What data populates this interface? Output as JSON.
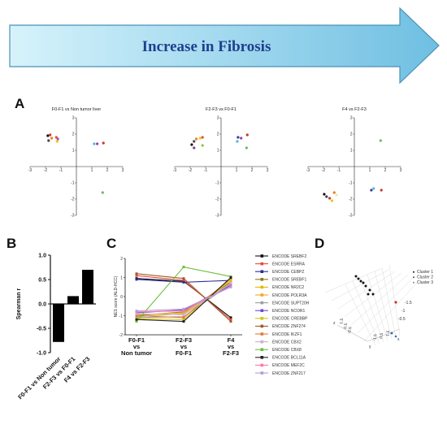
{
  "banner": {
    "text": "Increase  in  Fibrosis"
  },
  "panels": {
    "a": "A",
    "b": "B",
    "c": "C",
    "d": "D"
  },
  "colors": {
    "arrow_fill_light": "#d6f3fb",
    "arrow_fill_dark": "#7cc6e6",
    "arrow_text": "#1f3f8f"
  },
  "chart_data": [
    {
      "id": "A1",
      "type": "scatter",
      "title": "F0-F1 vs Non tumor liver",
      "xlim": [
        -3,
        3
      ],
      "ylim": [
        -3,
        3
      ],
      "xticks": [
        "-3",
        "-2",
        "-1",
        "1",
        "2",
        "3"
      ],
      "yticks": [
        "-3",
        "-2",
        "-1",
        "1",
        "2",
        "3"
      ],
      "points": [
        {
          "x": -1.85,
          "y": 1.9,
          "color": "#111111"
        },
        {
          "x": -1.7,
          "y": 1.95,
          "color": "#c0392b"
        },
        {
          "x": -1.8,
          "y": 1.6,
          "color": "#444444"
        },
        {
          "x": -1.6,
          "y": 1.75,
          "color": "#e67e22"
        },
        {
          "x": -1.3,
          "y": 1.8,
          "color": "#e74c3c"
        },
        {
          "x": -1.25,
          "y": 1.55,
          "color": "#f1c40f"
        },
        {
          "x": -1.2,
          "y": 1.7,
          "color": "#9b59b6"
        },
        {
          "x": 1.15,
          "y": 1.4,
          "color": "#5dade2"
        },
        {
          "x": 1.35,
          "y": 1.4,
          "color": "#8e44ad"
        },
        {
          "x": 1.75,
          "y": 1.45,
          "color": "#c0392b"
        },
        {
          "x": 1.7,
          "y": -1.6,
          "color": "#5dc15d"
        }
      ]
    },
    {
      "id": "A2",
      "type": "scatter",
      "title": "F2-F3 vs F0-F1",
      "xlim": [
        -3,
        3
      ],
      "ylim": [
        -3,
        3
      ],
      "xticks": [
        "-3",
        "-2",
        "-1",
        "1",
        "2",
        "3"
      ],
      "yticks": [
        "-3",
        "-2",
        "-1",
        "1",
        "2",
        "3"
      ],
      "points": [
        {
          "x": -1.9,
          "y": 1.35,
          "color": "#111111"
        },
        {
          "x": -1.75,
          "y": 1.55,
          "color": "#444444"
        },
        {
          "x": -1.6,
          "y": 1.7,
          "color": "#e67e22"
        },
        {
          "x": -1.35,
          "y": 1.75,
          "color": "#f1c40f"
        },
        {
          "x": -1.2,
          "y": 1.8,
          "color": "#e74c3c"
        },
        {
          "x": -1.2,
          "y": 1.3,
          "color": "#8bc34a"
        },
        {
          "x": -1.75,
          "y": 1.15,
          "color": "#7d3c98"
        },
        {
          "x": 1.1,
          "y": 1.8,
          "color": "#3b3b98"
        },
        {
          "x": 1.3,
          "y": 1.75,
          "color": "#8e44ad"
        },
        {
          "x": 1.05,
          "y": 1.55,
          "color": "#5dade2"
        },
        {
          "x": 1.7,
          "y": 1.95,
          "color": "#c0392b"
        },
        {
          "x": 1.65,
          "y": 1.15,
          "color": "#5dc15d"
        }
      ]
    },
    {
      "id": "A3",
      "type": "scatter",
      "title": "F4 vs F2-F3",
      "xlim": [
        -3,
        3
      ],
      "ylim": [
        -3,
        3
      ],
      "xticks": [
        "-3",
        "-2",
        "-1",
        "1",
        "2",
        "3"
      ],
      "yticks": [
        "-3",
        "-2",
        "-1",
        "1",
        "2",
        "3"
      ],
      "points": [
        {
          "x": -1.95,
          "y": -1.7,
          "color": "#111111"
        },
        {
          "x": -1.8,
          "y": -1.85,
          "color": "#444444"
        },
        {
          "x": -1.6,
          "y": -1.95,
          "color": "#c0392b"
        },
        {
          "x": -1.45,
          "y": -2.1,
          "color": "#f1c40f"
        },
        {
          "x": -1.3,
          "y": -1.6,
          "color": "#e67e22"
        },
        {
          "x": -1.15,
          "y": -1.75,
          "color": "#f9e79f"
        },
        {
          "x": 1.1,
          "y": -1.45,
          "color": "#3b3b98"
        },
        {
          "x": 1.25,
          "y": -1.35,
          "color": "#5dade2"
        },
        {
          "x": 1.75,
          "y": -1.45,
          "color": "#c0392b"
        },
        {
          "x": 1.7,
          "y": 1.6,
          "color": "#5dc15d"
        }
      ]
    },
    {
      "id": "B",
      "type": "bar",
      "ylabel": "Spearman r",
      "ylim": [
        -1.0,
        1.0
      ],
      "yticks": [
        "1.0",
        "0.5",
        "0.0",
        "-0.5",
        "-1.0"
      ],
      "categories": [
        "F0-F1 vs Non tumor",
        "F2-F3 vs F0-F1",
        "F4 vs F2-F3"
      ],
      "values": [
        -0.78,
        0.16,
        0.7
      ]
    },
    {
      "id": "C",
      "type": "line",
      "ylabel": "NES score (ALD-HCC)",
      "ylim": [
        -2,
        2
      ],
      "yticks": [
        "2",
        "1",
        "0",
        "-1",
        "-2"
      ],
      "categories": [
        [
          "F0-F1",
          "vs",
          "Non tumor"
        ],
        [
          "F2-F3",
          "vs",
          "F0-F1"
        ],
        [
          "F4",
          "vs",
          "F2-F3"
        ]
      ],
      "series": [
        {
          "name": "ENCODE SREBF2",
          "color": "#111111",
          "values": [
            0.95,
            0.8,
            -1.1
          ]
        },
        {
          "name": "ENCODE ESRRA",
          "color": "#e74c3c",
          "values": [
            1.1,
            0.85,
            -1.2
          ]
        },
        {
          "name": "ENCODE CEBPZ",
          "color": "#2a2a9a",
          "values": [
            0.9,
            0.75,
            0.85
          ]
        },
        {
          "name": "ENCODE SREBF1",
          "color": "#8a7a20",
          "values": [
            -1.0,
            -0.8,
            0.75
          ]
        },
        {
          "name": "ENCODE NR2C2",
          "color": "#e6b800",
          "values": [
            -1.05,
            -0.9,
            0.7
          ]
        },
        {
          "name": "ENCODE POLR3A",
          "color": "#f5a623",
          "values": [
            -0.95,
            -0.85,
            0.8
          ]
        },
        {
          "name": "ENCODE SUPT20H",
          "color": "#9e9e9e",
          "values": [
            -1.1,
            -1.05,
            0.65
          ]
        },
        {
          "name": "ENCODE NCOR1",
          "color": "#6a4cd6",
          "values": [
            -0.85,
            -0.7,
            0.6
          ]
        },
        {
          "name": "ENCODE CREBBP",
          "color": "#d4c414",
          "values": [
            -1.15,
            -1.2,
            0.9
          ]
        },
        {
          "name": "ENCODE ZNF274",
          "color": "#a05a2c",
          "values": [
            1.2,
            0.95,
            -1.3
          ]
        },
        {
          "name": "ENCODE IKZF1",
          "color": "#e07b39",
          "values": [
            -1.0,
            -1.1,
            0.95
          ]
        },
        {
          "name": "ENCODE CBX2",
          "color": "#c9b0d6",
          "values": [
            -0.9,
            -0.95,
            0.7
          ]
        },
        {
          "name": "ENCODE CBX8",
          "color": "#6abf3a",
          "values": [
            -1.3,
            1.55,
            1.05
          ]
        },
        {
          "name": "ENCODE BCL11A",
          "color": "#222222",
          "values": [
            -1.2,
            -1.3,
            1.0
          ]
        },
        {
          "name": "ENCODE MEF2C",
          "color": "#ff77aa",
          "values": [
            -0.8,
            -0.75,
            0.55
          ]
        },
        {
          "name": "ENCODE ZNF217",
          "color": "#b39ddb",
          "values": [
            -0.75,
            -0.65,
            0.5
          ]
        }
      ]
    },
    {
      "id": "D",
      "type": "scatter",
      "legend": [
        "Cluster 1",
        "Cluster 2",
        "Cluster 3"
      ],
      "axis_labels": {
        "x": "x",
        "y": "y",
        "z": "z"
      },
      "tick_labels": [
        "-1.5",
        "-1",
        "-0.5",
        "0",
        "0.5",
        "1",
        "1.5"
      ]
    }
  ]
}
